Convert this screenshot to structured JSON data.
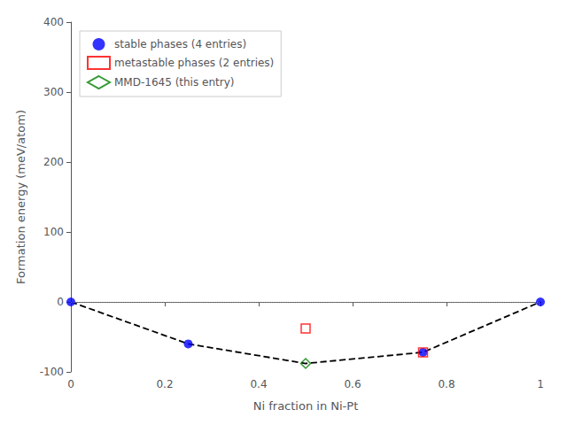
{
  "chart_data": {
    "type": "scatter",
    "xlabel": "Ni fraction in Ni-Pt",
    "ylabel": "Formation energy (meV/atom)",
    "xlim": [
      0.0,
      1.0
    ],
    "ylim": [
      -100,
      400
    ],
    "xticks": [
      0,
      0.2,
      0.4,
      0.6,
      0.8,
      1
    ],
    "yticks": [
      -100,
      0,
      100,
      200,
      300,
      400
    ],
    "grid": false,
    "legend": "upper left",
    "hlines": [
      {
        "y": 0,
        "color": "#808080",
        "line_style": "dotted"
      }
    ],
    "series": [
      {
        "type": "line",
        "line_style": "dashed",
        "color": "#000000",
        "x": [
          0.0,
          0.25,
          0.5,
          0.75,
          1.0
        ],
        "values": [
          0.0,
          -60.0,
          -88.0,
          -72.0,
          0.0
        ]
      },
      {
        "name": "stable phases (4 entries)",
        "type": "scatter",
        "marker": "circle",
        "color": "#0000ff",
        "x": [
          0.0,
          0.25,
          0.75,
          1.0
        ],
        "values": [
          0.0,
          -60.0,
          -72.0,
          0.0
        ]
      },
      {
        "name": "metastable phases (2 entries)",
        "type": "scatter",
        "marker": "square_open",
        "color": "#ff0000",
        "x": [
          0.5,
          0.75
        ],
        "values": [
          -38.0,
          -72.0
        ]
      },
      {
        "name": "MMD-1645 (this entry)",
        "type": "scatter",
        "marker": "diamond_open",
        "color": "#008000",
        "x": [
          0.5
        ],
        "values": [
          -88.0
        ]
      }
    ]
  }
}
